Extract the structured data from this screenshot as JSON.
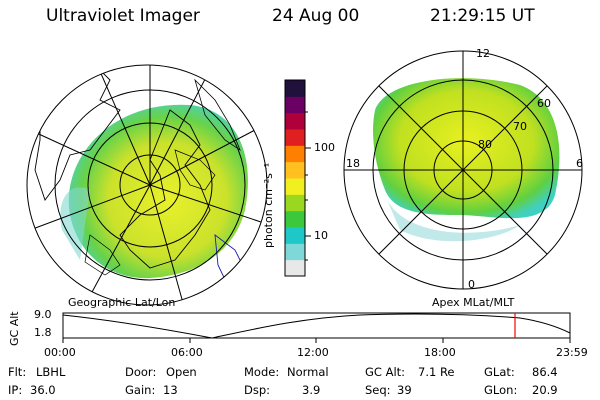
{
  "header": {
    "instrument": "Ultraviolet Imager",
    "date": "24 Aug 00",
    "time": "21:29:15 UT"
  },
  "colorbar": {
    "unit_label": "photon cm⁻²s⁻¹",
    "tick_100": "100",
    "tick_10": "10",
    "scale": "log",
    "colors_bottom_to_top": [
      "#e8e8e8",
      "#7fd8d8",
      "#1ec8c8",
      "#3cc83c",
      "#9ad820",
      "#f0f020",
      "#ffc020",
      "#ff8000",
      "#e02020",
      "#b0003c",
      "#6a0064",
      "#20103c"
    ]
  },
  "maps": {
    "left_label": "Geographic Lat/Lon",
    "right_label": "Apex MLat/MLT",
    "polar_lat_labels": [
      "80",
      "70",
      "60"
    ],
    "polar_mlt_labels": {
      "top": "12",
      "left": "18",
      "right": "6",
      "bottom": "0"
    }
  },
  "timeline": {
    "ylabel": "GC Alt",
    "y_top": "9.0",
    "y_bottom": "1.8",
    "x_ticks": [
      "00:00",
      "06:00",
      "12:00",
      "18:00",
      "23:59"
    ],
    "marker_color": "#ff0000"
  },
  "info": {
    "row1": [
      {
        "label": "Flt:",
        "value": "LBHL"
      },
      {
        "label": "Door:",
        "value": "Open"
      },
      {
        "label": "Mode:",
        "value": "Normal"
      },
      {
        "label": "GC Alt:",
        "value": "7.1 Re"
      },
      {
        "label": "GLat:",
        "value": "86.4"
      }
    ],
    "row2": [
      {
        "label": "IP:",
        "value": "36.0"
      },
      {
        "label": "Gain:",
        "value": "13"
      },
      {
        "label": "Dsp:",
        "value": "3.9"
      },
      {
        "label": "Seq:",
        "value": "39"
      },
      {
        "label": "GLon:",
        "value": "20.9"
      }
    ]
  }
}
